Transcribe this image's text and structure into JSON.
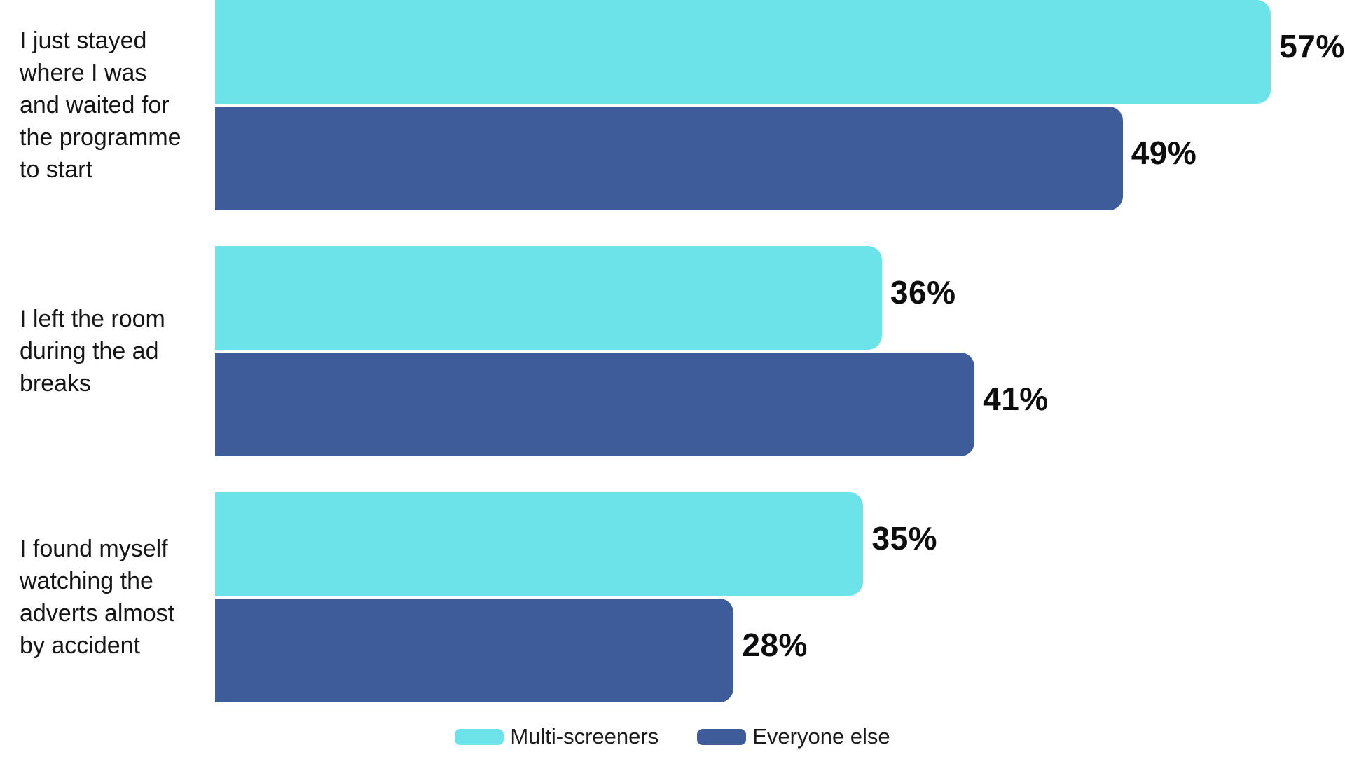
{
  "chart_data": {
    "type": "bar",
    "orientation": "horizontal",
    "title": "",
    "xlabel": "",
    "ylabel": "",
    "xlim": [
      0,
      61
    ],
    "grid": false,
    "axes_visible": false,
    "value_suffix": "%",
    "legend_position": "bottom",
    "categories": [
      "I just stayed where I was and waited for the programme to start",
      "I left the room during the ad breaks",
      "I found myself watching the adverts almost by accident"
    ],
    "categories_lines": [
      [
        "I just stayed",
        "where I was",
        "and waited for",
        "the programme",
        "to start"
      ],
      [
        "I left the room",
        "during the ad",
        "breaks"
      ],
      [
        "I found myself",
        "watching the",
        "adverts almost",
        "by accident"
      ]
    ],
    "series": [
      {
        "name": "Multi-screeners",
        "color": "#6BE3E8",
        "values": [
          57,
          36,
          35
        ],
        "labels": [
          "57%",
          "36%",
          "35%"
        ]
      },
      {
        "name": "Everyone else",
        "color": "#3D5C99",
        "values": [
          49,
          41,
          28
        ],
        "labels": [
          "49%",
          "41%",
          "28%"
        ]
      }
    ]
  },
  "colors": {
    "background": "#FFFFFF",
    "text": "#151515",
    "value_text": "#0D0D0D"
  }
}
